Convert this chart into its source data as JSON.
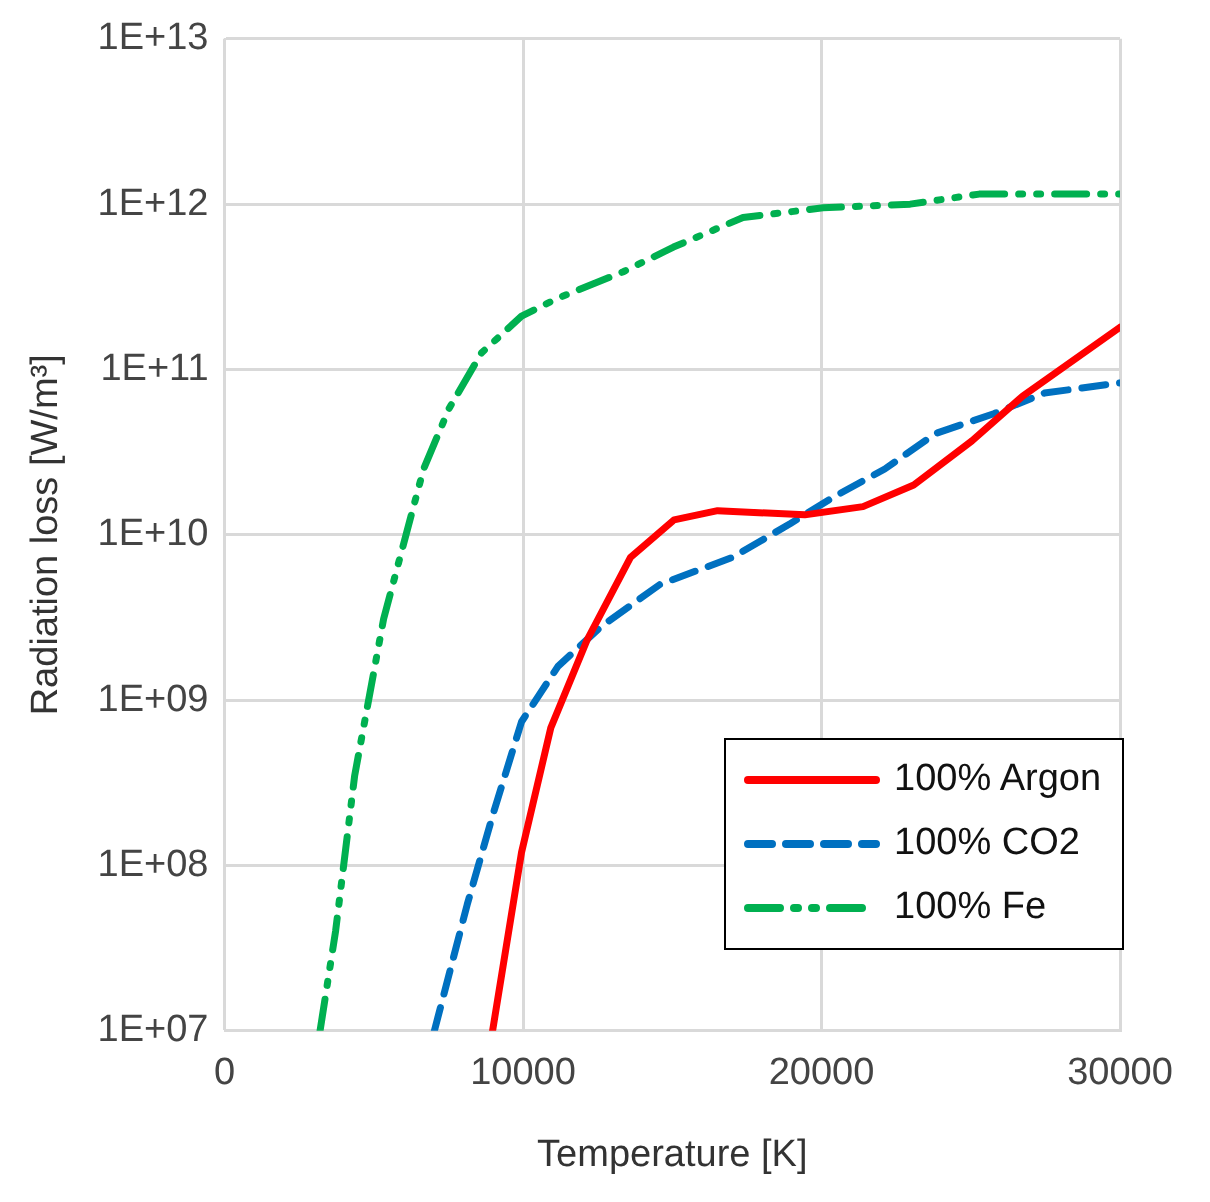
{
  "chart_data": {
    "type": "line",
    "xlabel": "Temperature [K]",
    "ylabel": "Radiation loss [W/m³]",
    "xlim": [
      0,
      30000
    ],
    "xticks": [
      0,
      10000,
      20000,
      30000
    ],
    "ylim": [
      10000000.0,
      10000000000000.0
    ],
    "yticks": [
      {
        "value": 10000000.0,
        "label": "1E+07"
      },
      {
        "value": 100000000.0,
        "label": "1E+08"
      },
      {
        "value": 1000000000.0,
        "label": "1E+09"
      },
      {
        "value": 10000000000.0,
        "label": "1E+10"
      },
      {
        "value": 100000000000.0,
        "label": "1E+11"
      },
      {
        "value": 1000000000000.0,
        "label": "1E+12"
      },
      {
        "value": 10000000000000.0,
        "label": "1E+13"
      }
    ],
    "log": "y",
    "grid": true,
    "legend": "bottom right",
    "marker": "none",
    "series": [
      {
        "name": "100% Argon",
        "color": "#ff0000",
        "line_style": "solid",
        "x": [
          8980,
          9950,
          10930,
          12140,
          13600,
          15060,
          16520,
          19440,
          21390,
          23090,
          25040,
          26740,
          30000
        ],
        "values": [
          10000000.0,
          120000000.0,
          680000000.0,
          2300000000.0,
          7300000000.0,
          12300000000.0,
          14000000000.0,
          13200000000.0,
          14800000000.0,
          20000000000.0,
          37000000000.0,
          69000000000.0,
          180000000000.0
        ]
      },
      {
        "name": "100% CO2",
        "color": "#0070c0",
        "line_style": "dashed",
        "x": [
          7030,
          8130,
          8980,
          9950,
          11170,
          12630,
          14580,
          17010,
          18960,
          20420,
          22120,
          23820,
          25770,
          27470,
          30000
        ],
        "values": [
          10000000.0,
          58000000.0,
          200000000.0,
          740000000.0,
          1600000000.0,
          2800000000.0,
          5000000000.0,
          7300000000.0,
          11700000000.0,
          17000000000.0,
          25000000000.0,
          41000000000.0,
          54000000000.0,
          72000000000.0,
          83000000000.0
        ]
      },
      {
        "name": "100% Fe",
        "color": "#00b050",
        "line_style": "dashdotdot",
        "x": [
          3200,
          3720,
          4360,
          5330,
          6420,
          6670,
          7520,
          8610,
          9950,
          11170,
          13360,
          15040,
          17370,
          20050,
          22970,
          25280,
          30000
        ],
        "values": [
          10000000.0,
          40000000.0,
          350000000.0,
          3100000000.0,
          17000000000.0,
          25000000000.0,
          58000000000.0,
          126000000000.0,
          210000000000.0,
          270000000000.0,
          390000000000.0,
          550000000000.0,
          830000000000.0,
          950000000000.0,
          1000000000000.0,
          1150000000000.0,
          1150000000000.0
        ]
      }
    ]
  }
}
